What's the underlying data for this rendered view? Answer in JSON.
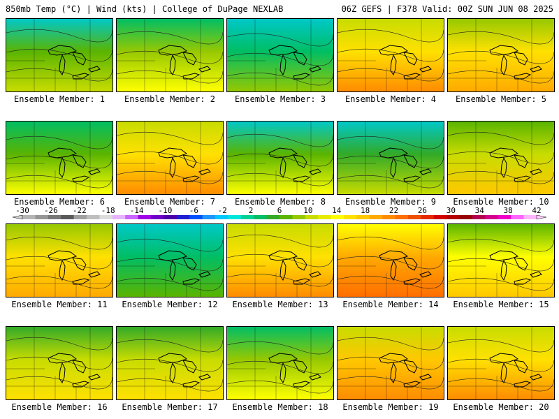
{
  "header": {
    "left": "850mb Temp (°C) | Wind (kts) | College of DuPage NEXLAB",
    "right": "06Z GEFS | F378 Valid: 00Z SUN JUN 08 2025"
  },
  "panels": [
    {
      "label": "Ensemble Member: 1",
      "warmth": 0.22
    },
    {
      "label": "Ensemble Member: 2",
      "warmth": 0.3
    },
    {
      "label": "Ensemble Member: 3",
      "warmth": 0.12
    },
    {
      "label": "Ensemble Member: 4",
      "warmth": 0.62
    },
    {
      "label": "Ensemble Member: 5",
      "warmth": 0.55
    },
    {
      "label": "Ensemble Member: 6",
      "warmth": 0.28
    },
    {
      "label": "Ensemble Member: 7",
      "warmth": 0.62
    },
    {
      "label": "Ensemble Member: 8",
      "warmth": 0.26
    },
    {
      "label": "Ensemble Member: 9",
      "warmth": 0.18
    },
    {
      "label": "Ensemble Member: 10",
      "warmth": 0.45
    },
    {
      "label": "Ensemble Member: 11",
      "warmth": 0.58
    },
    {
      "label": "Ensemble Member: 12",
      "warmth": 0.05
    },
    {
      "label": "Ensemble Member: 13",
      "warmth": 0.62
    },
    {
      "label": "Ensemble Member: 14",
      "warmth": 0.72
    },
    {
      "label": "Ensemble Member: 15",
      "warmth": 0.48
    },
    {
      "label": "Ensemble Member: 16",
      "warmth": 0.42
    },
    {
      "label": "Ensemble Member: 17",
      "warmth": 0.4
    },
    {
      "label": "Ensemble Member: 18",
      "warmth": 0.3
    },
    {
      "label": "Ensemble Member: 19",
      "warmth": 0.66
    },
    {
      "label": "Ensemble Member: 20",
      "warmth": 0.6
    }
  ],
  "colorbar": {
    "ticks": [
      "-30",
      "-26",
      "-22",
      "-18",
      "-14",
      "-10",
      "-6",
      "-2",
      "2",
      "6",
      "10",
      "14",
      "18",
      "22",
      "26",
      "30",
      "34",
      "38",
      "42"
    ],
    "colors": [
      "#b4b4b4",
      "#969696",
      "#787878",
      "#5a5a5a",
      "#a0a0a0",
      "#bebebe",
      "#dcdcdc",
      "#e6b4ff",
      "#c864ff",
      "#a000e6",
      "#6e00c8",
      "#4b00aa",
      "#1e1ed2",
      "#0050ff",
      "#1e96ff",
      "#00c8ff",
      "#00e6dc",
      "#00d296",
      "#00be64",
      "#32aa28",
      "#5ab400",
      "#96c800",
      "#c8dc00",
      "#e6eb00",
      "#ffff00",
      "#ffe100",
      "#ffc800",
      "#ffaa00",
      "#ff8c00",
      "#ff6e00",
      "#f05000",
      "#e62800",
      "#d20000",
      "#b40000",
      "#960000",
      "#b40050",
      "#d2008c",
      "#f000c8",
      "#ff64ff",
      "#ffb4ff"
    ]
  }
}
